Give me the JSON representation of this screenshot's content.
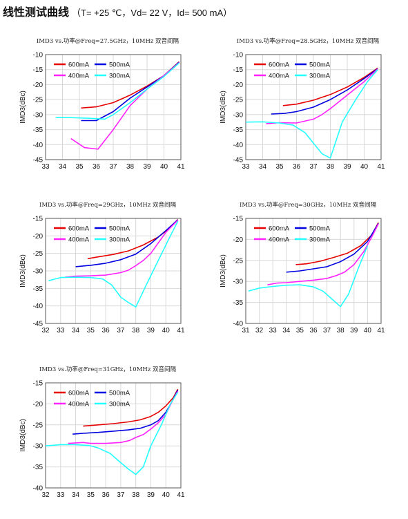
{
  "page": {
    "title": "线性测试曲线",
    "subtitle": "（T= +25 ℃，Vd= 22 V，Id= 500 mA）"
  },
  "chart_data": [
    {
      "type": "line",
      "title": "IMD3 vs.功率@Freq=27.5GHz，10MHz 双音间隔",
      "ylabel": "IMD3(dBc)",
      "xlim": [
        33,
        41
      ],
      "ylim": [
        -45,
        -10
      ],
      "xticks": [
        33,
        34,
        35,
        36,
        37,
        38,
        39,
        40,
        41
      ],
      "yticks": [
        -45,
        -40,
        -35,
        -30,
        -25,
        -20,
        -15,
        -10
      ],
      "series": [
        {
          "name": "600mA",
          "color": "#e60000",
          "x": [
            35.1,
            36,
            37,
            38,
            39,
            40,
            40.9
          ],
          "y": [
            -27.8,
            -27.4,
            -26,
            -23.5,
            -20.5,
            -17,
            -12.4
          ]
        },
        {
          "name": "500mA",
          "color": "#0000e0",
          "x": [
            35.1,
            36,
            37,
            38,
            39,
            40,
            40.9
          ],
          "y": [
            -32,
            -32,
            -29,
            -24.5,
            -20.8,
            -17,
            -12.5
          ]
        },
        {
          "name": "400mA",
          "color": "#ff22ff",
          "x": [
            34.5,
            35.3,
            36.1,
            37,
            38,
            39,
            40,
            40.9
          ],
          "y": [
            -38,
            -41,
            -41.5,
            -35,
            -27,
            -21.5,
            -17,
            -12.7
          ]
        },
        {
          "name": "300mA",
          "color": "#22ffff",
          "x": [
            33.6,
            34.5,
            35.5,
            36.5,
            37,
            38,
            39,
            40,
            40.9
          ],
          "y": [
            -31,
            -31,
            -31.2,
            -31.5,
            -30,
            -26,
            -21.5,
            -17.3,
            -12.8
          ]
        }
      ]
    },
    {
      "type": "line",
      "title": "IMD3 vs.功率@Freq=28.5GHz，10MHz 双音间隔",
      "ylabel": "IMD3(dBc)",
      "xlim": [
        33,
        41
      ],
      "ylim": [
        -45,
        -10
      ],
      "xticks": [
        33,
        34,
        35,
        36,
        37,
        38,
        39,
        40,
        41
      ],
      "yticks": [
        -45,
        -40,
        -35,
        -30,
        -25,
        -20,
        -15,
        -10
      ],
      "series": [
        {
          "name": "600mA",
          "color": "#e60000",
          "x": [
            35.2,
            36,
            37,
            38,
            39,
            40,
            40.8
          ],
          "y": [
            -27,
            -26.5,
            -25.2,
            -23.3,
            -20.8,
            -17.6,
            -14.5
          ]
        },
        {
          "name": "500mA",
          "color": "#0000e0",
          "x": [
            34.5,
            35.3,
            36,
            37,
            38,
            39,
            40,
            40.8
          ],
          "y": [
            -29.8,
            -29.6,
            -29,
            -27.5,
            -25,
            -21.8,
            -18,
            -14.7
          ]
        },
        {
          "name": "400mA",
          "color": "#ff22ff",
          "x": [
            34.2,
            35,
            36,
            37,
            37.5,
            38,
            39,
            40,
            40.8
          ],
          "y": [
            -33,
            -32.7,
            -32.8,
            -31.5,
            -30,
            -28,
            -23.5,
            -19,
            -14.8
          ]
        },
        {
          "name": "300mA",
          "color": "#22ffff",
          "x": [
            33,
            34,
            35,
            35.8,
            36.5,
            37,
            37.5,
            38,
            38.7,
            39.5,
            40.2,
            40.8
          ],
          "y": [
            -32.5,
            -32.4,
            -32.8,
            -33.5,
            -36,
            -39.5,
            -43,
            -44.5,
            -32.5,
            -25,
            -19,
            -15
          ]
        }
      ]
    },
    {
      "type": "line",
      "title": "IMD3 vs.功率@Freq=29GHz，10MHz 双音间隔",
      "ylabel": "IMD3(dBc)",
      "xlim": [
        32,
        41
      ],
      "ylim": [
        -45,
        -15
      ],
      "xticks": [
        32,
        33,
        34,
        35,
        36,
        37,
        38,
        39,
        40,
        41
      ],
      "yticks": [
        -45,
        -40,
        -35,
        -30,
        -25,
        -20,
        -15
      ],
      "series": [
        {
          "name": "600mA",
          "color": "#e60000",
          "x": [
            34.8,
            35.5,
            36.5,
            37.5,
            38.5,
            39.5,
            40.2,
            40.8
          ],
          "y": [
            -26.5,
            -26,
            -25.3,
            -24.3,
            -22.6,
            -20.3,
            -18,
            -15.3
          ]
        },
        {
          "name": "500mA",
          "color": "#0000e0",
          "x": [
            34,
            35,
            36,
            37,
            38,
            39,
            40,
            40.8
          ],
          "y": [
            -28.8,
            -28.4,
            -27.8,
            -26.8,
            -25.2,
            -22.2,
            -18.5,
            -15.4
          ]
        },
        {
          "name": "400mA",
          "color": "#ff22ff",
          "x": [
            33.3,
            34,
            35,
            36,
            37,
            37.5,
            38,
            38.5,
            39,
            39.5,
            40,
            40.8
          ],
          "y": [
            -31.8,
            -31.5,
            -31.4,
            -31.2,
            -30.5,
            -29.8,
            -28.5,
            -27,
            -25,
            -22,
            -19,
            -15.5
          ]
        },
        {
          "name": "300mA",
          "color": "#22ffff",
          "x": [
            32.2,
            33,
            34,
            35,
            35.8,
            36.4,
            37,
            37.5,
            38,
            38.7,
            39.5,
            40.3,
            40.8
          ],
          "y": [
            -32.8,
            -31.9,
            -31.8,
            -31.9,
            -32.3,
            -34,
            -37.5,
            -39,
            -40.3,
            -34,
            -27,
            -20,
            -15.8
          ]
        }
      ]
    },
    {
      "type": "line",
      "title": "IMD3 vs.功率@Freq=30GHz，10MHz 双音间隔",
      "ylabel": "IMD3(dBc)",
      "xlim": [
        31,
        41
      ],
      "ylim": [
        -40,
        -15
      ],
      "xticks": [
        31,
        32,
        33,
        34,
        35,
        36,
        37,
        38,
        39,
        40,
        41
      ],
      "yticks": [
        -40,
        -35,
        -30,
        -25,
        -20,
        -15
      ],
      "series": [
        {
          "name": "600mA",
          "color": "#e60000",
          "x": [
            34.7,
            35.5,
            36.5,
            37.5,
            38.5,
            39.5,
            40.3,
            40.8
          ],
          "y": [
            -26,
            -25.8,
            -25.2,
            -24.3,
            -23.3,
            -21.5,
            -19,
            -16
          ]
        },
        {
          "name": "500mA",
          "color": "#0000e0",
          "x": [
            34,
            35,
            36,
            37,
            38,
            39,
            40,
            40.8
          ],
          "y": [
            -27.8,
            -27.5,
            -27,
            -26.5,
            -25.3,
            -23.5,
            -20.5,
            -16.2
          ]
        },
        {
          "name": "400mA",
          "color": "#ff22ff",
          "x": [
            32.6,
            33.3,
            34,
            35,
            36,
            37,
            37.7,
            38.3,
            39,
            39.7,
            40.3,
            40.8
          ],
          "y": [
            -30.8,
            -30.4,
            -30.3,
            -30,
            -29.7,
            -29.3,
            -28.6,
            -27.8,
            -26,
            -23,
            -19.5,
            -16.3
          ]
        },
        {
          "name": "300mA",
          "color": "#22ffff",
          "x": [
            31.2,
            32,
            33,
            34,
            35,
            36,
            36.7,
            37.3,
            38,
            38.6,
            39.3,
            40
          ],
          "y": [
            -32.3,
            -31.6,
            -31.2,
            -30.9,
            -30.8,
            -31.3,
            -32.3,
            -34,
            -36,
            -33,
            -27,
            -21.5
          ]
        }
      ]
    },
    {
      "type": "line",
      "title": "IMD3 vs.功率@Freq=31GHz，10MHz 双音间隔",
      "ylabel": "IMD3(dBc)",
      "xlim": [
        32,
        41
      ],
      "ylim": [
        -40,
        -15
      ],
      "xticks": [
        32,
        33,
        34,
        35,
        36,
        37,
        38,
        39,
        40,
        41
      ],
      "yticks": [
        -40,
        -35,
        -30,
        -25,
        -20,
        -15
      ],
      "series": [
        {
          "name": "600mA",
          "color": "#e60000",
          "x": [
            34.5,
            35.5,
            36.5,
            37.5,
            38.3,
            39,
            39.5,
            40,
            40.5,
            40.8
          ],
          "y": [
            -25.3,
            -25,
            -24.7,
            -24.3,
            -23.8,
            -23,
            -22,
            -20.5,
            -18.5,
            -16.5
          ]
        },
        {
          "name": "500mA",
          "color": "#0000e0",
          "x": [
            33.8,
            34.5,
            35.5,
            36.5,
            37.5,
            38.3,
            39,
            39.5,
            40,
            40.4,
            40.8
          ],
          "y": [
            -27.2,
            -27,
            -26.8,
            -26.5,
            -26.2,
            -25.8,
            -25,
            -24,
            -22,
            -19.5,
            -16.7
          ]
        },
        {
          "name": "400mA",
          "color": "#ff22ff",
          "x": [
            33.5,
            34,
            34.5,
            35,
            36,
            37,
            37.6,
            38,
            38.5,
            39,
            39.5,
            40,
            40.4,
            40.8
          ],
          "y": [
            -29.4,
            -29.3,
            -29.2,
            -29.4,
            -29.4,
            -29.2,
            -28.7,
            -28,
            -27.3,
            -26,
            -24.5,
            -22.5,
            -19.5,
            -17
          ]
        },
        {
          "name": "300mA",
          "color": "#22ffff",
          "x": [
            32,
            33,
            34,
            34.9,
            35.5,
            36.3,
            37,
            37.5,
            38,
            38.5,
            39,
            39.7,
            40.3,
            40.8
          ],
          "y": [
            -30,
            -29.7,
            -29.7,
            -29.9,
            -30.5,
            -31.8,
            -34,
            -35.5,
            -36.8,
            -35,
            -30,
            -25,
            -20,
            -17.2
          ]
        }
      ]
    }
  ]
}
